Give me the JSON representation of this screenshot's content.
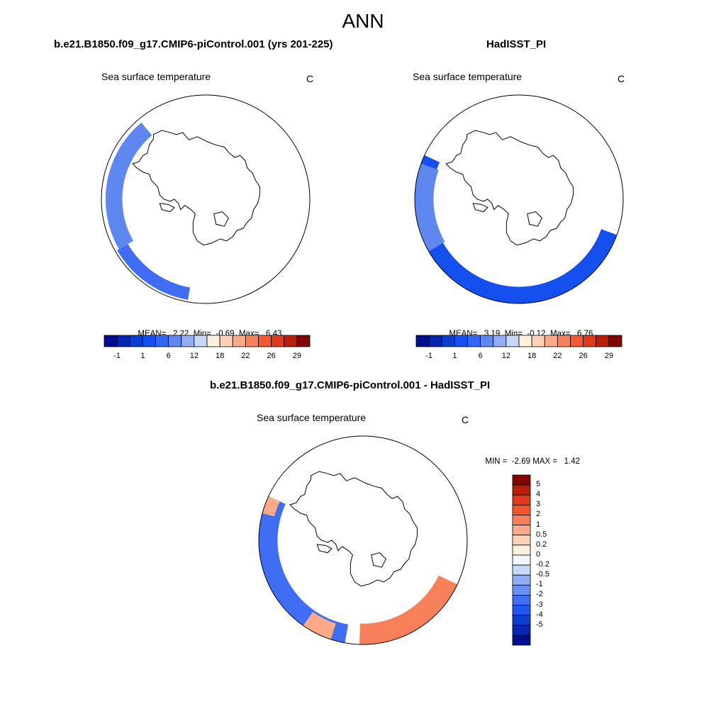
{
  "figure": {
    "title": "ANN"
  },
  "panels": [
    {
      "id": "model",
      "case_title": "b.e21.B1850.f09_g17.CMIP6-piControl.001 (yrs 201-225)",
      "variable_label": "Sea surface temperature",
      "unit": "C",
      "stats": {
        "mean_label": "MEAN=",
        "mean": "2.22",
        "min_label": "Min=",
        "min": "-0.69",
        "max_label": "Max=",
        "max": "6.43"
      },
      "projection": "south-polar-stereographic"
    },
    {
      "id": "obs",
      "case_title": "HadISST_PI",
      "variable_label": "Sea surface temperature",
      "unit": "C",
      "stats": {
        "mean_label": "MEAN=",
        "mean": "3.19",
        "min_label": "Min=",
        "min": "-0.12",
        "max_label": "Max=",
        "max": "6.76"
      },
      "projection": "south-polar-stereographic"
    },
    {
      "id": "diff",
      "case_title": "b.e21.B1850.f09_g17.CMIP6-piControl.001 - HadISST_PI",
      "variable_label": "Sea surface temperature",
      "unit": "C",
      "stats": {
        "min_label": "MIN =",
        "min": "-2.69",
        "max_label": "MAX =",
        "max": "1.42"
      },
      "projection": "south-polar-stereographic"
    }
  ],
  "colorbars": {
    "sst": {
      "orientation": "horizontal",
      "colors": [
        "#000e8f",
        "#0526b1",
        "#0b3dcf",
        "#1450ee",
        "#3268f2",
        "#5f87f0",
        "#93adf2",
        "#c8d8fa",
        "#fff0e0",
        "#fdd2b6",
        "#fcaa87",
        "#f8805a",
        "#f15a35",
        "#df3a1c",
        "#b81f0b",
        "#810502"
      ],
      "tick_labels": [
        "-1",
        "1",
        "6",
        "12",
        "18",
        "22",
        "26",
        "29"
      ]
    },
    "diff": {
      "orientation": "vertical",
      "colors_top_to_bottom": [
        "#810502",
        "#b81f0b",
        "#df3a1c",
        "#f4542a",
        "#f8805a",
        "#fcaa87",
        "#fdd2b6",
        "#fff0e0",
        "#f0f6ff",
        "#c8d8fa",
        "#93adf2",
        "#6990f2",
        "#3f6df3",
        "#1e56ef",
        "#0b3dcf",
        "#0526b1",
        "#000e8f"
      ],
      "tick_labels_top_to_bottom": [
        "5",
        "4",
        "3",
        "2",
        "1",
        "0.5",
        "0.2",
        "0",
        "-0.2",
        "-0.5",
        "-1",
        "-2",
        "-3",
        "-4",
        "-5"
      ]
    }
  },
  "colors": {
    "land": "#ffffff",
    "coast": "#000000",
    "ocean_cold": "#1450ee",
    "ocean_cool": "#3f6df3",
    "ocean_warm": "#5f87f0",
    "diff_warm": "#f8805a",
    "diff_light": "#fcaa87"
  }
}
